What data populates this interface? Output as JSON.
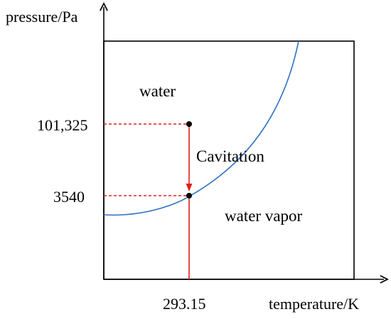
{
  "diagram": {
    "y_axis_title": "pressure/Pa",
    "x_axis_title": "temperature/K",
    "region_upper": "water",
    "region_lower": "water vapor",
    "process_label": "Cavitation",
    "y_tick_upper": "101,325",
    "y_tick_lower": "3540",
    "x_tick": "293.15"
  },
  "colors": {
    "curve": "#2f6fc4",
    "process_line": "#e02020",
    "guide_line": "#e02020",
    "frame": "#000000",
    "point": "#000000"
  }
}
